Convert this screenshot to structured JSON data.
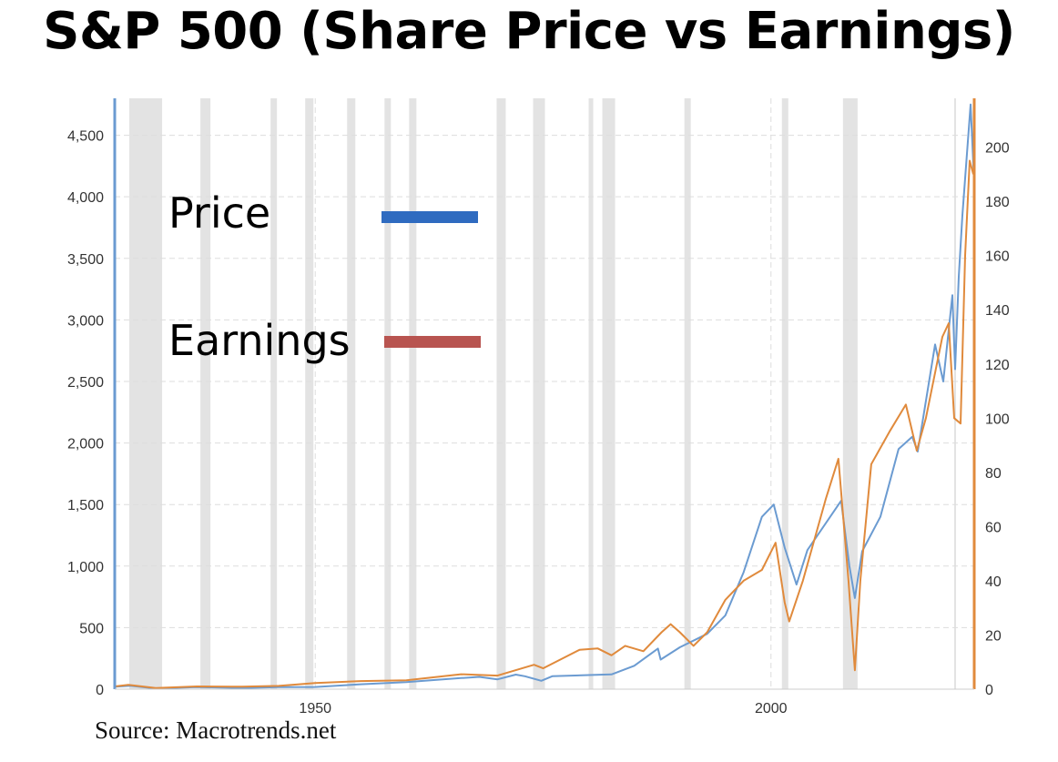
{
  "title": "S&P 500 (Share Price vs Earnings)",
  "source": "Source: Macrotrends.net",
  "colors": {
    "price": "#6b9bd1",
    "earnings": "#e08a3c",
    "price_legend": "#2f6bc0",
    "earnings_legend": "#b85450",
    "recession": "#e3e3e3",
    "grid": "#dddddd"
  },
  "chart_data": {
    "type": "line",
    "legend": [
      {
        "label": "Price",
        "series": "price"
      },
      {
        "label": "Earnings",
        "series": "earnings"
      }
    ],
    "x_range": [
      1928,
      2022.3
    ],
    "x_ticks": [
      "1950",
      "2000"
    ],
    "y_left": {
      "range": [
        0,
        4800
      ],
      "ticks": [
        "0",
        "500",
        "1,000",
        "1,500",
        "2,000",
        "2,500",
        "3,000",
        "3,500",
        "4,000",
        "4,500"
      ],
      "tick_values": [
        0,
        500,
        1000,
        1500,
        2000,
        2500,
        3000,
        3500,
        4000,
        4500
      ]
    },
    "y_right": {
      "range": [
        0,
        218
      ],
      "ticks": [
        "0",
        "20",
        "40",
        "60",
        "80",
        "100",
        "120",
        "140",
        "160",
        "180",
        "200"
      ],
      "tick_values": [
        0,
        20,
        40,
        60,
        80,
        100,
        120,
        140,
        160,
        180,
        200
      ]
    },
    "grid": true,
    "recessions": [
      [
        1929.6,
        1933.2
      ],
      [
        1937.4,
        1938.5
      ],
      [
        1945.1,
        1945.8
      ],
      [
        1948.9,
        1949.8
      ],
      [
        1953.5,
        1954.4
      ],
      [
        1957.6,
        1958.3
      ],
      [
        1960.3,
        1961.1
      ],
      [
        1969.9,
        1970.9
      ],
      [
        1973.9,
        1975.2
      ],
      [
        1980.0,
        1980.5
      ],
      [
        1981.5,
        1982.9
      ],
      [
        1990.5,
        1991.2
      ],
      [
        2001.2,
        2001.9
      ],
      [
        2007.9,
        2009.5
      ],
      [
        2020.1,
        2020.3
      ]
    ],
    "series": [
      {
        "key": "price",
        "axis": "left",
        "points": [
          [
            1928,
            20
          ],
          [
            1929.7,
            28
          ],
          [
            1932.5,
            6
          ],
          [
            1937,
            17
          ],
          [
            1942,
            9
          ],
          [
            1946,
            17
          ],
          [
            1950,
            18
          ],
          [
            1955,
            40
          ],
          [
            1960,
            58
          ],
          [
            1966,
            90
          ],
          [
            1968,
            100
          ],
          [
            1970,
            80
          ],
          [
            1972,
            118
          ],
          [
            1973,
            105
          ],
          [
            1974.8,
            68
          ],
          [
            1976,
            105
          ],
          [
            1980,
            115
          ],
          [
            1982.5,
            120
          ],
          [
            1985,
            190
          ],
          [
            1987.6,
            330
          ],
          [
            1987.9,
            240
          ],
          [
            1990,
            340
          ],
          [
            1993,
            450
          ],
          [
            1995,
            600
          ],
          [
            1997,
            950
          ],
          [
            1999,
            1400
          ],
          [
            2000.3,
            1500
          ],
          [
            2001.5,
            1150
          ],
          [
            2002.8,
            850
          ],
          [
            2004,
            1130
          ],
          [
            2007.7,
            1530
          ],
          [
            2008.6,
            1000
          ],
          [
            2009.2,
            740
          ],
          [
            2010,
            1120
          ],
          [
            2012,
            1400
          ],
          [
            2014,
            1950
          ],
          [
            2015.5,
            2050
          ],
          [
            2016.1,
            1930
          ],
          [
            2018,
            2800
          ],
          [
            2018.9,
            2500
          ],
          [
            2019.9,
            3200
          ],
          [
            2020.2,
            2600
          ],
          [
            2020.6,
            3350
          ],
          [
            2021,
            3850
          ],
          [
            2021.9,
            4750
          ],
          [
            2022.3,
            4100
          ]
        ]
      },
      {
        "key": "earnings",
        "axis": "right",
        "points": [
          [
            1928,
            1
          ],
          [
            1929.5,
            1.6
          ],
          [
            1932.5,
            0.4
          ],
          [
            1937,
            1
          ],
          [
            1942,
            0.9
          ],
          [
            1946,
            1.2
          ],
          [
            1950,
            2.3
          ],
          [
            1955,
            3
          ],
          [
            1960,
            3.3
          ],
          [
            1966,
            5.5
          ],
          [
            1970,
            5
          ],
          [
            1974,
            9
          ],
          [
            1975,
            7.7
          ],
          [
            1979,
            14.5
          ],
          [
            1981,
            15
          ],
          [
            1982.5,
            12.5
          ],
          [
            1984,
            16
          ],
          [
            1986,
            14
          ],
          [
            1988,
            21
          ],
          [
            1989,
            24
          ],
          [
            1990,
            21
          ],
          [
            1991.5,
            16
          ],
          [
            1993,
            21
          ],
          [
            1995,
            33
          ],
          [
            1997,
            40
          ],
          [
            1999,
            44
          ],
          [
            2000.5,
            54
          ],
          [
            2001.5,
            32
          ],
          [
            2002,
            25
          ],
          [
            2003.5,
            40
          ],
          [
            2006,
            70
          ],
          [
            2007.4,
            85
          ],
          [
            2008.5,
            40
          ],
          [
            2009.2,
            7
          ],
          [
            2009.8,
            40
          ],
          [
            2011,
            83
          ],
          [
            2013,
            95
          ],
          [
            2014.8,
            105
          ],
          [
            2016,
            88
          ],
          [
            2017,
            100
          ],
          [
            2018.8,
            130
          ],
          [
            2019.5,
            135
          ],
          [
            2020.1,
            100
          ],
          [
            2020.8,
            98
          ],
          [
            2021.3,
            160
          ],
          [
            2021.8,
            195
          ],
          [
            2022.2,
            190
          ]
        ]
      }
    ]
  }
}
